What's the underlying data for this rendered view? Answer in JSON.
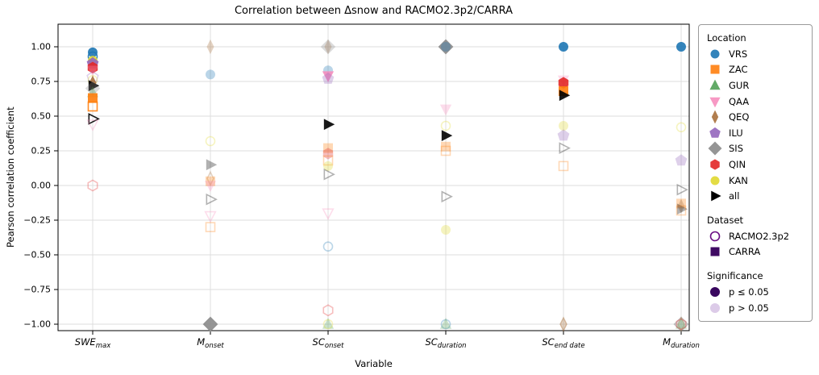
{
  "chart_data": {
    "type": "scatter",
    "title": "Correlation between Δsnow and RACMO2.3p2/CARRA",
    "xlabel": "Variable",
    "ylabel": "Pearson correlation coefficient",
    "ylim": [
      -1.12,
      1.12
    ],
    "grid": true,
    "yticks": [
      1.0,
      0.75,
      0.5,
      0.25,
      0.0,
      -0.25,
      -0.5,
      -0.75,
      -1.0
    ],
    "ytick_labels": [
      "1.00",
      "0.75",
      "0.50",
      "0.25",
      "0.00",
      "−0.25",
      "−0.50",
      "−0.75",
      "−1.00"
    ],
    "categories": [
      {
        "main": "SWE",
        "sub": "max"
      },
      {
        "main": "M",
        "sub": "onset"
      },
      {
        "main": "SC",
        "sub": "onset"
      },
      {
        "main": "SC",
        "sub": "duration"
      },
      {
        "main": "SC",
        "sub": "end date"
      },
      {
        "main": "M",
        "sub": "duration"
      }
    ],
    "legend": {
      "location_title": "Location",
      "dataset_title": "Dataset",
      "significance_title": "Significance",
      "racmo_color": "#6a0d83",
      "carra_color": "#3f0a63",
      "sig_color": "#38075e",
      "nonsig_color": "#dccbe8"
    },
    "locations": [
      {
        "code": "VRS",
        "marker": "circle",
        "color": "#1f77b4"
      },
      {
        "code": "ZAC",
        "marker": "square",
        "color": "#ff7f0e"
      },
      {
        "code": "GUR",
        "marker": "triangle-up",
        "color": "#53a158"
      },
      {
        "code": "QAA",
        "marker": "triangle-down",
        "color": "#f78fbe"
      },
      {
        "code": "QEQ",
        "marker": "thin-diamond",
        "color": "#a9713c"
      },
      {
        "code": "ILU",
        "marker": "pentagon",
        "color": "#9467bd"
      },
      {
        "code": "SIS",
        "marker": "diamond",
        "color": "#8a8a8a"
      },
      {
        "code": "QIN",
        "marker": "hexagon",
        "color": "#e32727"
      },
      {
        "code": "KAN",
        "marker": "circle",
        "color": "#e0d930"
      },
      {
        "code": "all",
        "marker": "right-triangle",
        "color": "#000000"
      }
    ],
    "datasets": [
      {
        "name": "RACMO2.3p2",
        "style": "open"
      },
      {
        "name": "CARRA",
        "style": "filled"
      }
    ],
    "significance": [
      {
        "label": "p ≤ 0.05",
        "alpha": 0.9
      },
      {
        "label": "p > 0.05",
        "alpha": 0.3
      }
    ],
    "points": [
      {
        "var": 0,
        "loc": "VRS",
        "dataset": "CARRA",
        "value": 0.96,
        "significant": true
      },
      {
        "var": 0,
        "loc": "VRS",
        "dataset": "RACMO2.3p2",
        "value": 0.93,
        "significant": true
      },
      {
        "var": 0,
        "loc": "KAN",
        "dataset": "CARRA",
        "value": 0.9,
        "significant": true
      },
      {
        "var": 0,
        "loc": "ILU",
        "dataset": "CARRA",
        "value": 0.88,
        "significant": true
      },
      {
        "var": 0,
        "loc": "QIN",
        "dataset": "CARRA",
        "value": 0.85,
        "significant": true
      },
      {
        "var": 0,
        "loc": "QAA",
        "dataset": "CARRA",
        "value": 0.83,
        "significant": false
      },
      {
        "var": 0,
        "loc": "ILU",
        "dataset": "RACMO2.3p2",
        "value": 0.78,
        "significant": false
      },
      {
        "var": 0,
        "loc": "KAN",
        "dataset": "RACMO2.3p2",
        "value": 0.76,
        "significant": false
      },
      {
        "var": 0,
        "loc": "QEQ",
        "dataset": "CARRA",
        "value": 0.74,
        "significant": true
      },
      {
        "var": 0,
        "loc": "all",
        "dataset": "CARRA",
        "value": 0.72,
        "significant": true
      },
      {
        "var": 0,
        "loc": "SIS",
        "dataset": "CARRA",
        "value": 0.7,
        "significant": false
      },
      {
        "var": 0,
        "loc": "GUR",
        "dataset": "CARRA",
        "value": 0.67,
        "significant": false
      },
      {
        "var": 0,
        "loc": "ZAC",
        "dataset": "CARRA",
        "value": 0.63,
        "significant": true
      },
      {
        "var": 0,
        "loc": "ZAC",
        "dataset": "RACMO2.3p2",
        "value": 0.57,
        "significant": true
      },
      {
        "var": 0,
        "loc": "all",
        "dataset": "RACMO2.3p2",
        "value": 0.48,
        "significant": true
      },
      {
        "var": 0,
        "loc": "QAA",
        "dataset": "RACMO2.3p2",
        "value": 0.44,
        "significant": false
      },
      {
        "var": 0,
        "loc": "QIN",
        "dataset": "RACMO2.3p2",
        "value": 0.0,
        "significant": false
      },
      {
        "var": 1,
        "loc": "QEQ",
        "dataset": "CARRA",
        "value": 1.0,
        "significant": false
      },
      {
        "var": 1,
        "loc": "VRS",
        "dataset": "CARRA",
        "value": 0.8,
        "significant": false
      },
      {
        "var": 1,
        "loc": "KAN",
        "dataset": "RACMO2.3p2",
        "value": 0.32,
        "significant": false
      },
      {
        "var": 1,
        "loc": "all",
        "dataset": "CARRA",
        "value": 0.15,
        "significant": false
      },
      {
        "var": 1,
        "loc": "QEQ",
        "dataset": "RACMO2.3p2",
        "value": 0.05,
        "significant": false
      },
      {
        "var": 1,
        "loc": "ZAC",
        "dataset": "CARRA",
        "value": 0.03,
        "significant": false
      },
      {
        "var": 1,
        "loc": "QAA",
        "dataset": "CARRA",
        "value": 0.0,
        "significant": false
      },
      {
        "var": 1,
        "loc": "all",
        "dataset": "RACMO2.3p2",
        "value": -0.1,
        "significant": false
      },
      {
        "var": 1,
        "loc": "QAA",
        "dataset": "RACMO2.3p2",
        "value": -0.22,
        "significant": false
      },
      {
        "var": 1,
        "loc": "ZAC",
        "dataset": "RACMO2.3p2",
        "value": -0.3,
        "significant": false
      },
      {
        "var": 1,
        "loc": "SIS",
        "dataset": "CARRA",
        "value": -1.0,
        "significant": true
      },
      {
        "var": 1,
        "loc": "SIS",
        "dataset": "RACMO2.3p2",
        "value": -1.0,
        "significant": false
      },
      {
        "var": 2,
        "loc": "QEQ",
        "dataset": "CARRA",
        "value": 1.0,
        "significant": false
      },
      {
        "var": 2,
        "loc": "SIS",
        "dataset": "CARRA",
        "value": 1.0,
        "significant": false
      },
      {
        "var": 2,
        "loc": "VRS",
        "dataset": "CARRA",
        "value": 0.83,
        "significant": false
      },
      {
        "var": 2,
        "loc": "QAA",
        "dataset": "CARRA",
        "value": 0.79,
        "significant": true
      },
      {
        "var": 2,
        "loc": "ILU",
        "dataset": "CARRA",
        "value": 0.77,
        "significant": false
      },
      {
        "var": 2,
        "loc": "all",
        "dataset": "CARRA",
        "value": 0.44,
        "significant": true
      },
      {
        "var": 2,
        "loc": "ZAC",
        "dataset": "CARRA",
        "value": 0.27,
        "significant": false
      },
      {
        "var": 2,
        "loc": "QIN",
        "dataset": "CARRA",
        "value": 0.23,
        "significant": false
      },
      {
        "var": 2,
        "loc": "ZAC",
        "dataset": "RACMO2.3p2",
        "value": 0.18,
        "significant": false
      },
      {
        "var": 2,
        "loc": "KAN",
        "dataset": "CARRA",
        "value": 0.14,
        "significant": false
      },
      {
        "var": 2,
        "loc": "all",
        "dataset": "RACMO2.3p2",
        "value": 0.08,
        "significant": false
      },
      {
        "var": 2,
        "loc": "QAA",
        "dataset": "RACMO2.3p2",
        "value": -0.2,
        "significant": false
      },
      {
        "var": 2,
        "loc": "VRS",
        "dataset": "RACMO2.3p2",
        "value": -0.44,
        "significant": false
      },
      {
        "var": 2,
        "loc": "QIN",
        "dataset": "RACMO2.3p2",
        "value": -0.9,
        "significant": false
      },
      {
        "var": 2,
        "loc": "GUR",
        "dataset": "CARRA",
        "value": -1.0,
        "significant": false
      },
      {
        "var": 2,
        "loc": "KAN",
        "dataset": "RACMO2.3p2",
        "value": -1.0,
        "significant": false
      },
      {
        "var": 3,
        "loc": "SIS",
        "dataset": "CARRA",
        "value": 1.0,
        "significant": true
      },
      {
        "var": 3,
        "loc": "SIS",
        "dataset": "RACMO2.3p2",
        "value": 1.0,
        "significant": false
      },
      {
        "var": 3,
        "loc": "VRS",
        "dataset": "CARRA",
        "value": 1.0,
        "significant": false
      },
      {
        "var": 3,
        "loc": "QAA",
        "dataset": "CARRA",
        "value": 0.55,
        "significant": false
      },
      {
        "var": 3,
        "loc": "KAN",
        "dataset": "RACMO2.3p2",
        "value": 0.43,
        "significant": false
      },
      {
        "var": 3,
        "loc": "all",
        "dataset": "CARRA",
        "value": 0.36,
        "significant": true
      },
      {
        "var": 3,
        "loc": "ZAC",
        "dataset": "CARRA",
        "value": 0.28,
        "significant": false
      },
      {
        "var": 3,
        "loc": "ZAC",
        "dataset": "RACMO2.3p2",
        "value": 0.25,
        "significant": false
      },
      {
        "var": 3,
        "loc": "all",
        "dataset": "RACMO2.3p2",
        "value": -0.08,
        "significant": false
      },
      {
        "var": 3,
        "loc": "KAN",
        "dataset": "CARRA",
        "value": -0.32,
        "significant": false
      },
      {
        "var": 3,
        "loc": "VRS",
        "dataset": "RACMO2.3p2",
        "value": -1.0,
        "significant": false
      },
      {
        "var": 3,
        "loc": "GUR",
        "dataset": "CARRA",
        "value": -1.0,
        "significant": false
      },
      {
        "var": 4,
        "loc": "VRS",
        "dataset": "CARRA",
        "value": 1.0,
        "significant": true
      },
      {
        "var": 4,
        "loc": "QAA",
        "dataset": "CARRA",
        "value": 0.76,
        "significant": false
      },
      {
        "var": 4,
        "loc": "QIN",
        "dataset": "CARRA",
        "value": 0.74,
        "significant": true
      },
      {
        "var": 4,
        "loc": "ZAC",
        "dataset": "CARRA",
        "value": 0.68,
        "significant": true
      },
      {
        "var": 4,
        "loc": "all",
        "dataset": "CARRA",
        "value": 0.65,
        "significant": true
      },
      {
        "var": 4,
        "loc": "KAN",
        "dataset": "CARRA",
        "value": 0.43,
        "significant": false
      },
      {
        "var": 4,
        "loc": "ILU",
        "dataset": "CARRA",
        "value": 0.36,
        "significant": false
      },
      {
        "var": 4,
        "loc": "all",
        "dataset": "RACMO2.3p2",
        "value": 0.27,
        "significant": false
      },
      {
        "var": 4,
        "loc": "ZAC",
        "dataset": "RACMO2.3p2",
        "value": 0.14,
        "significant": false
      },
      {
        "var": 4,
        "loc": "QEQ",
        "dataset": "CARRA",
        "value": -1.0,
        "significant": false
      },
      {
        "var": 4,
        "loc": "QEQ",
        "dataset": "RACMO2.3p2",
        "value": -1.0,
        "significant": false
      },
      {
        "var": 5,
        "loc": "VRS",
        "dataset": "CARRA",
        "value": 1.0,
        "significant": true
      },
      {
        "var": 5,
        "loc": "KAN",
        "dataset": "RACMO2.3p2",
        "value": 0.42,
        "significant": false
      },
      {
        "var": 5,
        "loc": "ILU",
        "dataset": "CARRA",
        "value": 0.18,
        "significant": false
      },
      {
        "var": 5,
        "loc": "all",
        "dataset": "RACMO2.3p2",
        "value": -0.03,
        "significant": false
      },
      {
        "var": 5,
        "loc": "ZAC",
        "dataset": "CARRA",
        "value": -0.13,
        "significant": false
      },
      {
        "var": 5,
        "loc": "QEQ",
        "dataset": "CARRA",
        "value": -0.15,
        "significant": false
      },
      {
        "var": 5,
        "loc": "all",
        "dataset": "CARRA",
        "value": -0.17,
        "significant": false
      },
      {
        "var": 5,
        "loc": "ZAC",
        "dataset": "RACMO2.3p2",
        "value": -0.18,
        "significant": false
      },
      {
        "var": 5,
        "loc": "SIS",
        "dataset": "CARRA",
        "value": -1.0,
        "significant": false
      },
      {
        "var": 5,
        "loc": "SIS",
        "dataset": "RACMO2.3p2",
        "value": -1.0,
        "significant": false
      },
      {
        "var": 5,
        "loc": "QEQ",
        "dataset": "RACMO2.3p2",
        "value": -1.0,
        "significant": false
      },
      {
        "var": 5,
        "loc": "GUR",
        "dataset": "CARRA",
        "value": -1.0,
        "significant": false
      },
      {
        "var": 5,
        "loc": "QIN",
        "dataset": "RACMO2.3p2",
        "value": -1.0,
        "significant": false
      }
    ]
  }
}
